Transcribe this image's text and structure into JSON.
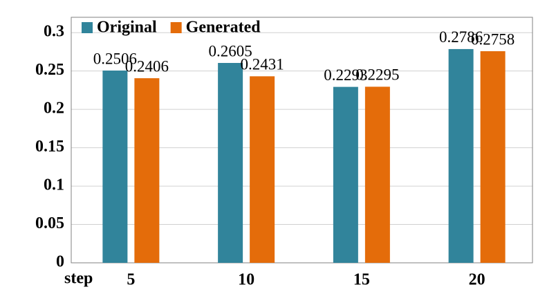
{
  "chart_data": {
    "type": "bar",
    "x_label": "step",
    "categories": [
      "5",
      "10",
      "15",
      "20"
    ],
    "series": [
      {
        "name": "Original",
        "color": "#31849b",
        "values": [
          0.2506,
          0.2605,
          0.2293,
          0.2786
        ]
      },
      {
        "name": "Generated",
        "color": "#e46c0a",
        "values": [
          0.2406,
          0.2431,
          0.2295,
          0.2758
        ]
      }
    ],
    "ylim": [
      0,
      0.32
    ],
    "yticks": [
      0,
      0.05,
      0.1,
      0.15,
      0.2,
      0.25,
      0.3
    ],
    "grid": true,
    "legend": "top-left"
  }
}
